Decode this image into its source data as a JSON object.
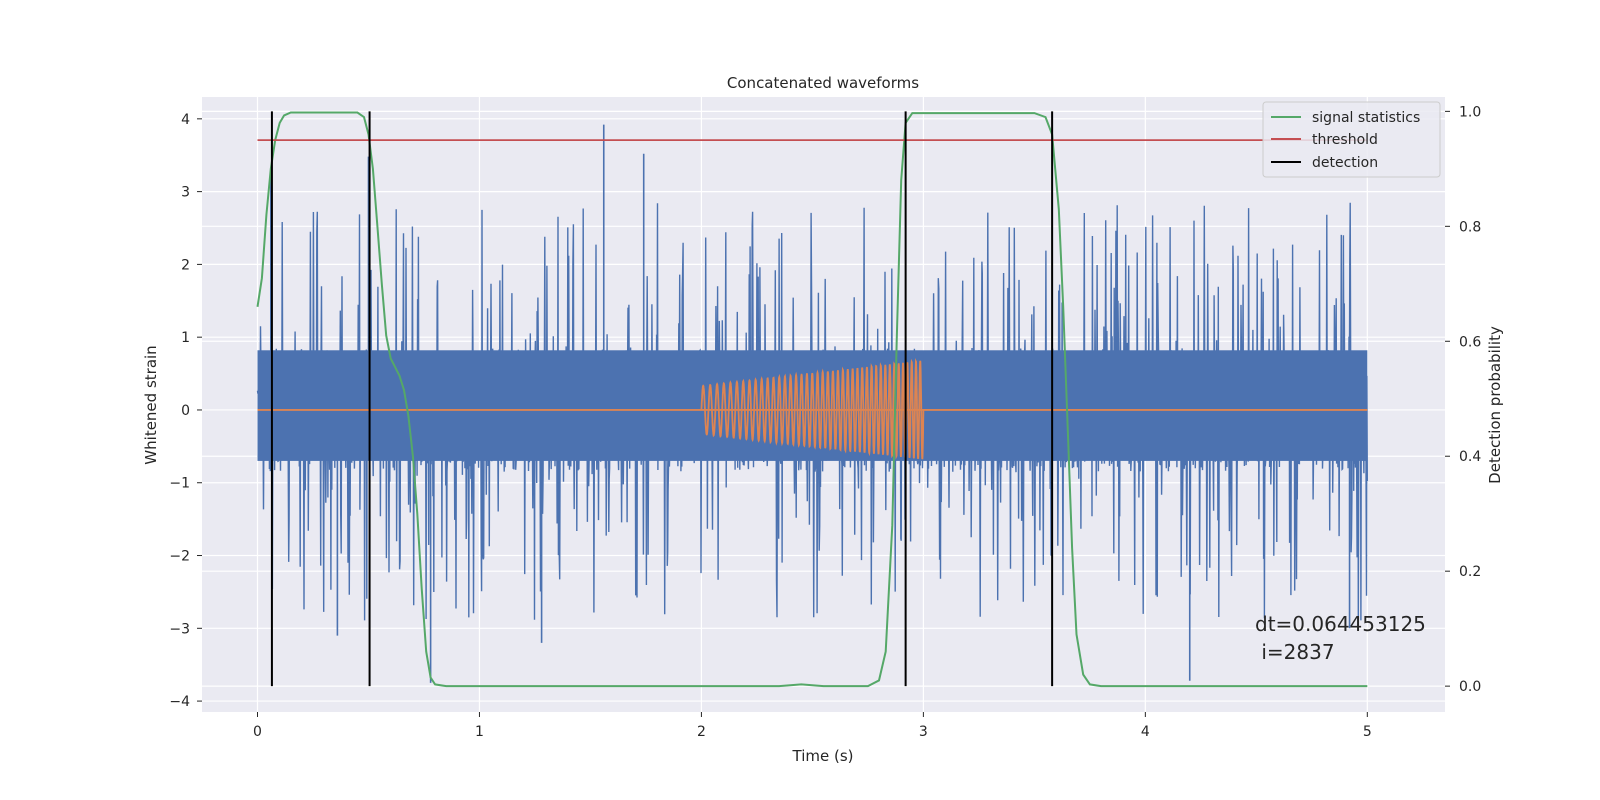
{
  "chart_data": {
    "type": "line",
    "title": "Concatenated waveforms",
    "xlabel": "Time (s)",
    "ylabel": "Whitened strain",
    "y2label": "Detection probability",
    "xlim": [
      -0.25,
      5.35
    ],
    "ylim": [
      -4.15,
      4.3
    ],
    "y2lim": [
      -0.045,
      1.025
    ],
    "xticks": [
      "0",
      "1",
      "2",
      "3",
      "4",
      "5"
    ],
    "yticks": [
      "−4",
      "−3",
      "−2",
      "−1",
      "0",
      "1",
      "2",
      "3",
      "4"
    ],
    "y2ticks": [
      "0.0",
      "0.2",
      "0.4",
      "0.6",
      "0.8",
      "1.0"
    ],
    "grid": true,
    "legend_position": "top-right",
    "colors": {
      "background": "#eaeaf2",
      "grid": "#ffffff",
      "strain": "#4c72b0",
      "template": "#dd8452",
      "signal_statistics": "#55a868",
      "threshold": "#c44e52",
      "detection": "#000000"
    },
    "series": [
      {
        "name": "",
        "axis": "left",
        "kind": "whitened strain noise",
        "x_range": [
          0,
          5
        ],
        "body_amplitude": 0.85,
        "peak_amplitude": 3.9,
        "peaks": [
          {
            "x": 1.56,
            "y": 3.92
          },
          {
            "x": 1.74,
            "y": 3.52
          },
          {
            "x": 0.5,
            "y": 3.48
          },
          {
            "x": 0.06,
            "y": 3.25
          },
          {
            "x": 0.78,
            "y": -3.75
          },
          {
            "x": 4.2,
            "y": -3.72
          },
          {
            "x": 0.36,
            "y": -3.1
          },
          {
            "x": 1.28,
            "y": -3.2
          },
          {
            "x": 4.92,
            "y": -3.0
          }
        ]
      },
      {
        "name": "",
        "axis": "left",
        "kind": "injected chirp",
        "flat_value": 0,
        "chirp_x": [
          2.0,
          3.0
        ],
        "chirp_amplitude": [
          0.33,
          0.68
        ],
        "chirp_cycles": 42
      },
      {
        "name": "signal statistics",
        "axis": "right",
        "points": [
          [
            0.0,
            0.66
          ],
          [
            0.02,
            0.71
          ],
          [
            0.04,
            0.82
          ],
          [
            0.06,
            0.9
          ],
          [
            0.08,
            0.95
          ],
          [
            0.1,
            0.98
          ],
          [
            0.12,
            0.993
          ],
          [
            0.15,
            0.998
          ],
          [
            0.45,
            0.998
          ],
          [
            0.48,
            0.99
          ],
          [
            0.5,
            0.96
          ],
          [
            0.52,
            0.9
          ],
          [
            0.54,
            0.8
          ],
          [
            0.56,
            0.7
          ],
          [
            0.58,
            0.61
          ],
          [
            0.6,
            0.57
          ],
          [
            0.62,
            0.555
          ],
          [
            0.64,
            0.54
          ],
          [
            0.66,
            0.515
          ],
          [
            0.68,
            0.47
          ],
          [
            0.7,
            0.4
          ],
          [
            0.72,
            0.3
          ],
          [
            0.74,
            0.17
          ],
          [
            0.76,
            0.06
          ],
          [
            0.78,
            0.015
          ],
          [
            0.8,
            0.003
          ],
          [
            0.85,
            0.0
          ],
          [
            2.35,
            0.0
          ],
          [
            2.45,
            0.003
          ],
          [
            2.55,
            0.0
          ],
          [
            2.75,
            0.0
          ],
          [
            2.8,
            0.01
          ],
          [
            2.83,
            0.06
          ],
          [
            2.86,
            0.28
          ],
          [
            2.88,
            0.6
          ],
          [
            2.9,
            0.88
          ],
          [
            2.92,
            0.98
          ],
          [
            2.95,
            0.997
          ],
          [
            3.5,
            0.997
          ],
          [
            3.55,
            0.99
          ],
          [
            3.58,
            0.96
          ],
          [
            3.61,
            0.83
          ],
          [
            3.63,
            0.66
          ],
          [
            3.65,
            0.45
          ],
          [
            3.67,
            0.24
          ],
          [
            3.69,
            0.09
          ],
          [
            3.72,
            0.02
          ],
          [
            3.75,
            0.003
          ],
          [
            3.8,
            0.0
          ],
          [
            5.0,
            0.0
          ]
        ]
      },
      {
        "name": "threshold",
        "axis": "right",
        "value": 0.95,
        "x_range": [
          0,
          5
        ]
      },
      {
        "name": "detection",
        "axis": "right",
        "x": [
          0.065,
          0.505,
          2.92,
          3.58
        ],
        "y_range": [
          0.0,
          1.0
        ]
      }
    ],
    "annotation": {
      "line1": "dt=0.064453125",
      "line2": " i=2837"
    }
  }
}
